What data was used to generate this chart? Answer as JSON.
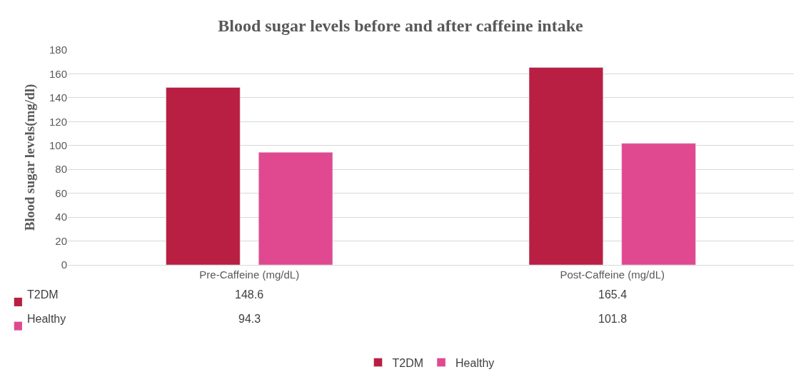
{
  "chart_data": {
    "type": "bar",
    "title": "Blood sugar levels before and after caffeine intake",
    "ylabel": "Blood sugar levels(mg/dl)",
    "categories": [
      "Pre-Caffeine (mg/dL)",
      "Post-Caffeine (mg/dL)"
    ],
    "series": [
      {
        "name": "T2DM",
        "color": "#b91f42",
        "values": [
          148.6,
          165.4
        ]
      },
      {
        "name": "Healthy",
        "color": "#e0498f",
        "values": [
          94.3,
          101.8
        ]
      }
    ],
    "ylim": [
      0,
      180
    ],
    "yticks": [
      0,
      20,
      40,
      60,
      80,
      100,
      120,
      140,
      160,
      180
    ],
    "grid": "y",
    "legend": "bottom",
    "data_labels": true
  }
}
